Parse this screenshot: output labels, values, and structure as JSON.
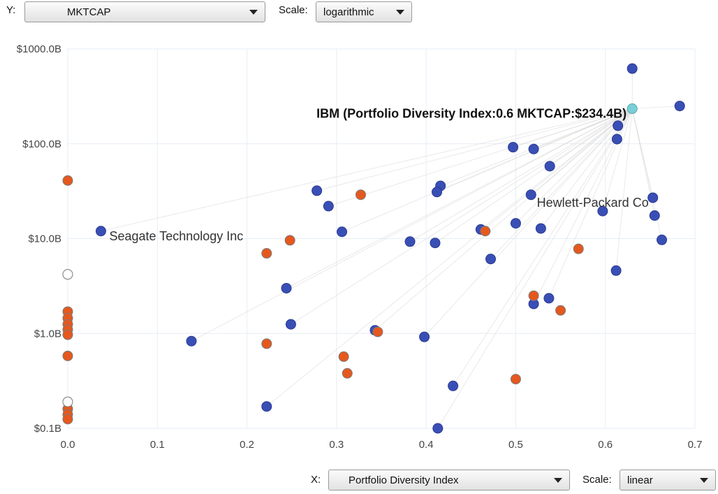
{
  "controls": {
    "y_label": "Y:",
    "y_value": "MKTCAP",
    "y_scale_label": "Scale:",
    "y_scale_value": "logarithmic",
    "x_label": "X:",
    "x_value": "Portfolio Diversity Index",
    "x_scale_label": "Scale:",
    "x_scale_value": "linear"
  },
  "colors": {
    "series_a": "#3a4fb5",
    "series_b": "#e5581e",
    "highlight": "#79cfd6",
    "hollow": "#ffffff",
    "grid": "#e6eef6",
    "links": "#d8d8d8"
  },
  "chart_data": {
    "type": "scatter",
    "xlabel": "Portfolio Diversity Index",
    "ylabel": "MKTCAP",
    "xscale": "linear",
    "yscale": "log",
    "xlim": [
      -0.02,
      0.7
    ],
    "ylim": [
      0.1,
      1000
    ],
    "xticks": [
      "0.0",
      "0.1",
      "0.2",
      "0.3",
      "0.4",
      "0.5",
      "0.6",
      "0.7"
    ],
    "yticks": [
      "$0.1B",
      "$1.0B",
      "$10.0B",
      "$100.0B",
      "$1000.0B"
    ],
    "highlight": {
      "x": 0.63,
      "y": 234.4,
      "label": "IBM (Portfolio Diversity Index:0.6 MKTCAP:$234.4B)"
    },
    "annotations": [
      {
        "x": 0.037,
        "y": 12,
        "text": "Seagate Technology Inc"
      },
      {
        "x": 0.653,
        "y": 27,
        "text": "Hewlett-Packard Co"
      }
    ],
    "series": [
      {
        "points": [
          [
            0.63,
            620
          ],
          [
            0.683,
            250
          ],
          [
            0.614,
            155
          ],
          [
            0.613,
            112
          ],
          [
            0.497,
            92
          ],
          [
            0.52,
            88
          ],
          [
            0.538,
            58
          ],
          [
            0.517,
            29
          ],
          [
            0.653,
            27
          ],
          [
            0.655,
            17.5
          ],
          [
            0.597,
            19.5
          ],
          [
            0.663,
            9.7
          ],
          [
            0.612,
            4.6
          ],
          [
            0.5,
            14.5
          ],
          [
            0.528,
            12.8
          ],
          [
            0.461,
            12.5
          ],
          [
            0.472,
            6.1
          ],
          [
            0.416,
            36
          ],
          [
            0.412,
            31
          ],
          [
            0.382,
            9.3
          ],
          [
            0.41,
            9.0
          ],
          [
            0.278,
            32
          ],
          [
            0.291,
            22
          ],
          [
            0.306,
            11.8
          ],
          [
            0.037,
            12
          ],
          [
            0.244,
            3.0
          ],
          [
            0.249,
            1.25
          ],
          [
            0.138,
            0.83
          ],
          [
            0.343,
            1.08
          ],
          [
            0.398,
            0.92
          ],
          [
            0.43,
            0.28
          ],
          [
            0.413,
            0.1
          ],
          [
            0.222,
            0.17
          ],
          [
            0.537,
            2.35
          ],
          [
            0.52,
            2.05
          ]
        ]
      },
      {
        "points": [
          [
            0.0,
            41
          ],
          [
            0.327,
            29
          ],
          [
            0.248,
            9.6
          ],
          [
            0.222,
            7.0
          ],
          [
            0.466,
            12.0
          ],
          [
            0.57,
            7.8
          ],
          [
            0.52,
            2.5
          ],
          [
            0.55,
            1.75
          ],
          [
            0.346,
            1.04
          ],
          [
            0.222,
            0.78
          ],
          [
            0.308,
            0.57
          ],
          [
            0.312,
            0.38
          ],
          [
            0.5,
            0.33
          ],
          [
            0.0,
            1.7
          ],
          [
            0.0,
            1.45
          ],
          [
            0.0,
            1.25
          ],
          [
            0.0,
            1.1
          ],
          [
            0.0,
            0.97
          ],
          [
            0.0,
            0.58
          ],
          [
            0.0,
            0.16
          ],
          [
            0.0,
            0.14
          ],
          [
            0.0,
            0.125
          ]
        ]
      },
      {
        "points": [
          [
            0.0,
            4.2
          ],
          [
            0.0,
            0.19
          ]
        ]
      }
    ]
  }
}
